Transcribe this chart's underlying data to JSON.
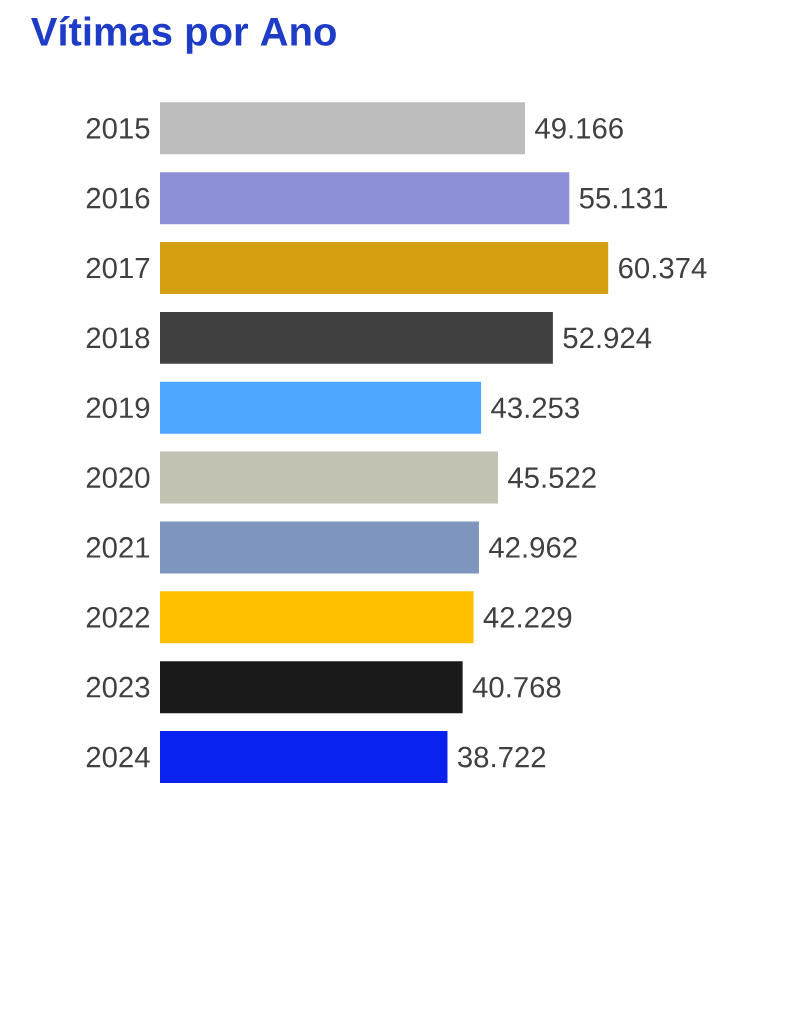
{
  "chart_data": {
    "type": "bar",
    "orientation": "horizontal",
    "title": "Vítimas por Ano",
    "categories": [
      "2015",
      "2016",
      "2017",
      "2018",
      "2019",
      "2020",
      "2021",
      "2022",
      "2023",
      "2024"
    ],
    "values": [
      49166,
      55131,
      60374,
      52924,
      43253,
      45522,
      42962,
      42229,
      40768,
      38722
    ],
    "value_labels": [
      "49.166",
      "55.131",
      "60.374",
      "52.924",
      "43.253",
      "45.522",
      "42.962",
      "42.229",
      "40.768",
      "38.722"
    ],
    "colors": [
      "#bdbdbd",
      "#8c8fd6",
      "#d4a012",
      "#404040",
      "#4da6ff",
      "#c2c2b2",
      "#7e95c0",
      "#ffc000",
      "#1a1a1a",
      "#0a22f0"
    ]
  }
}
